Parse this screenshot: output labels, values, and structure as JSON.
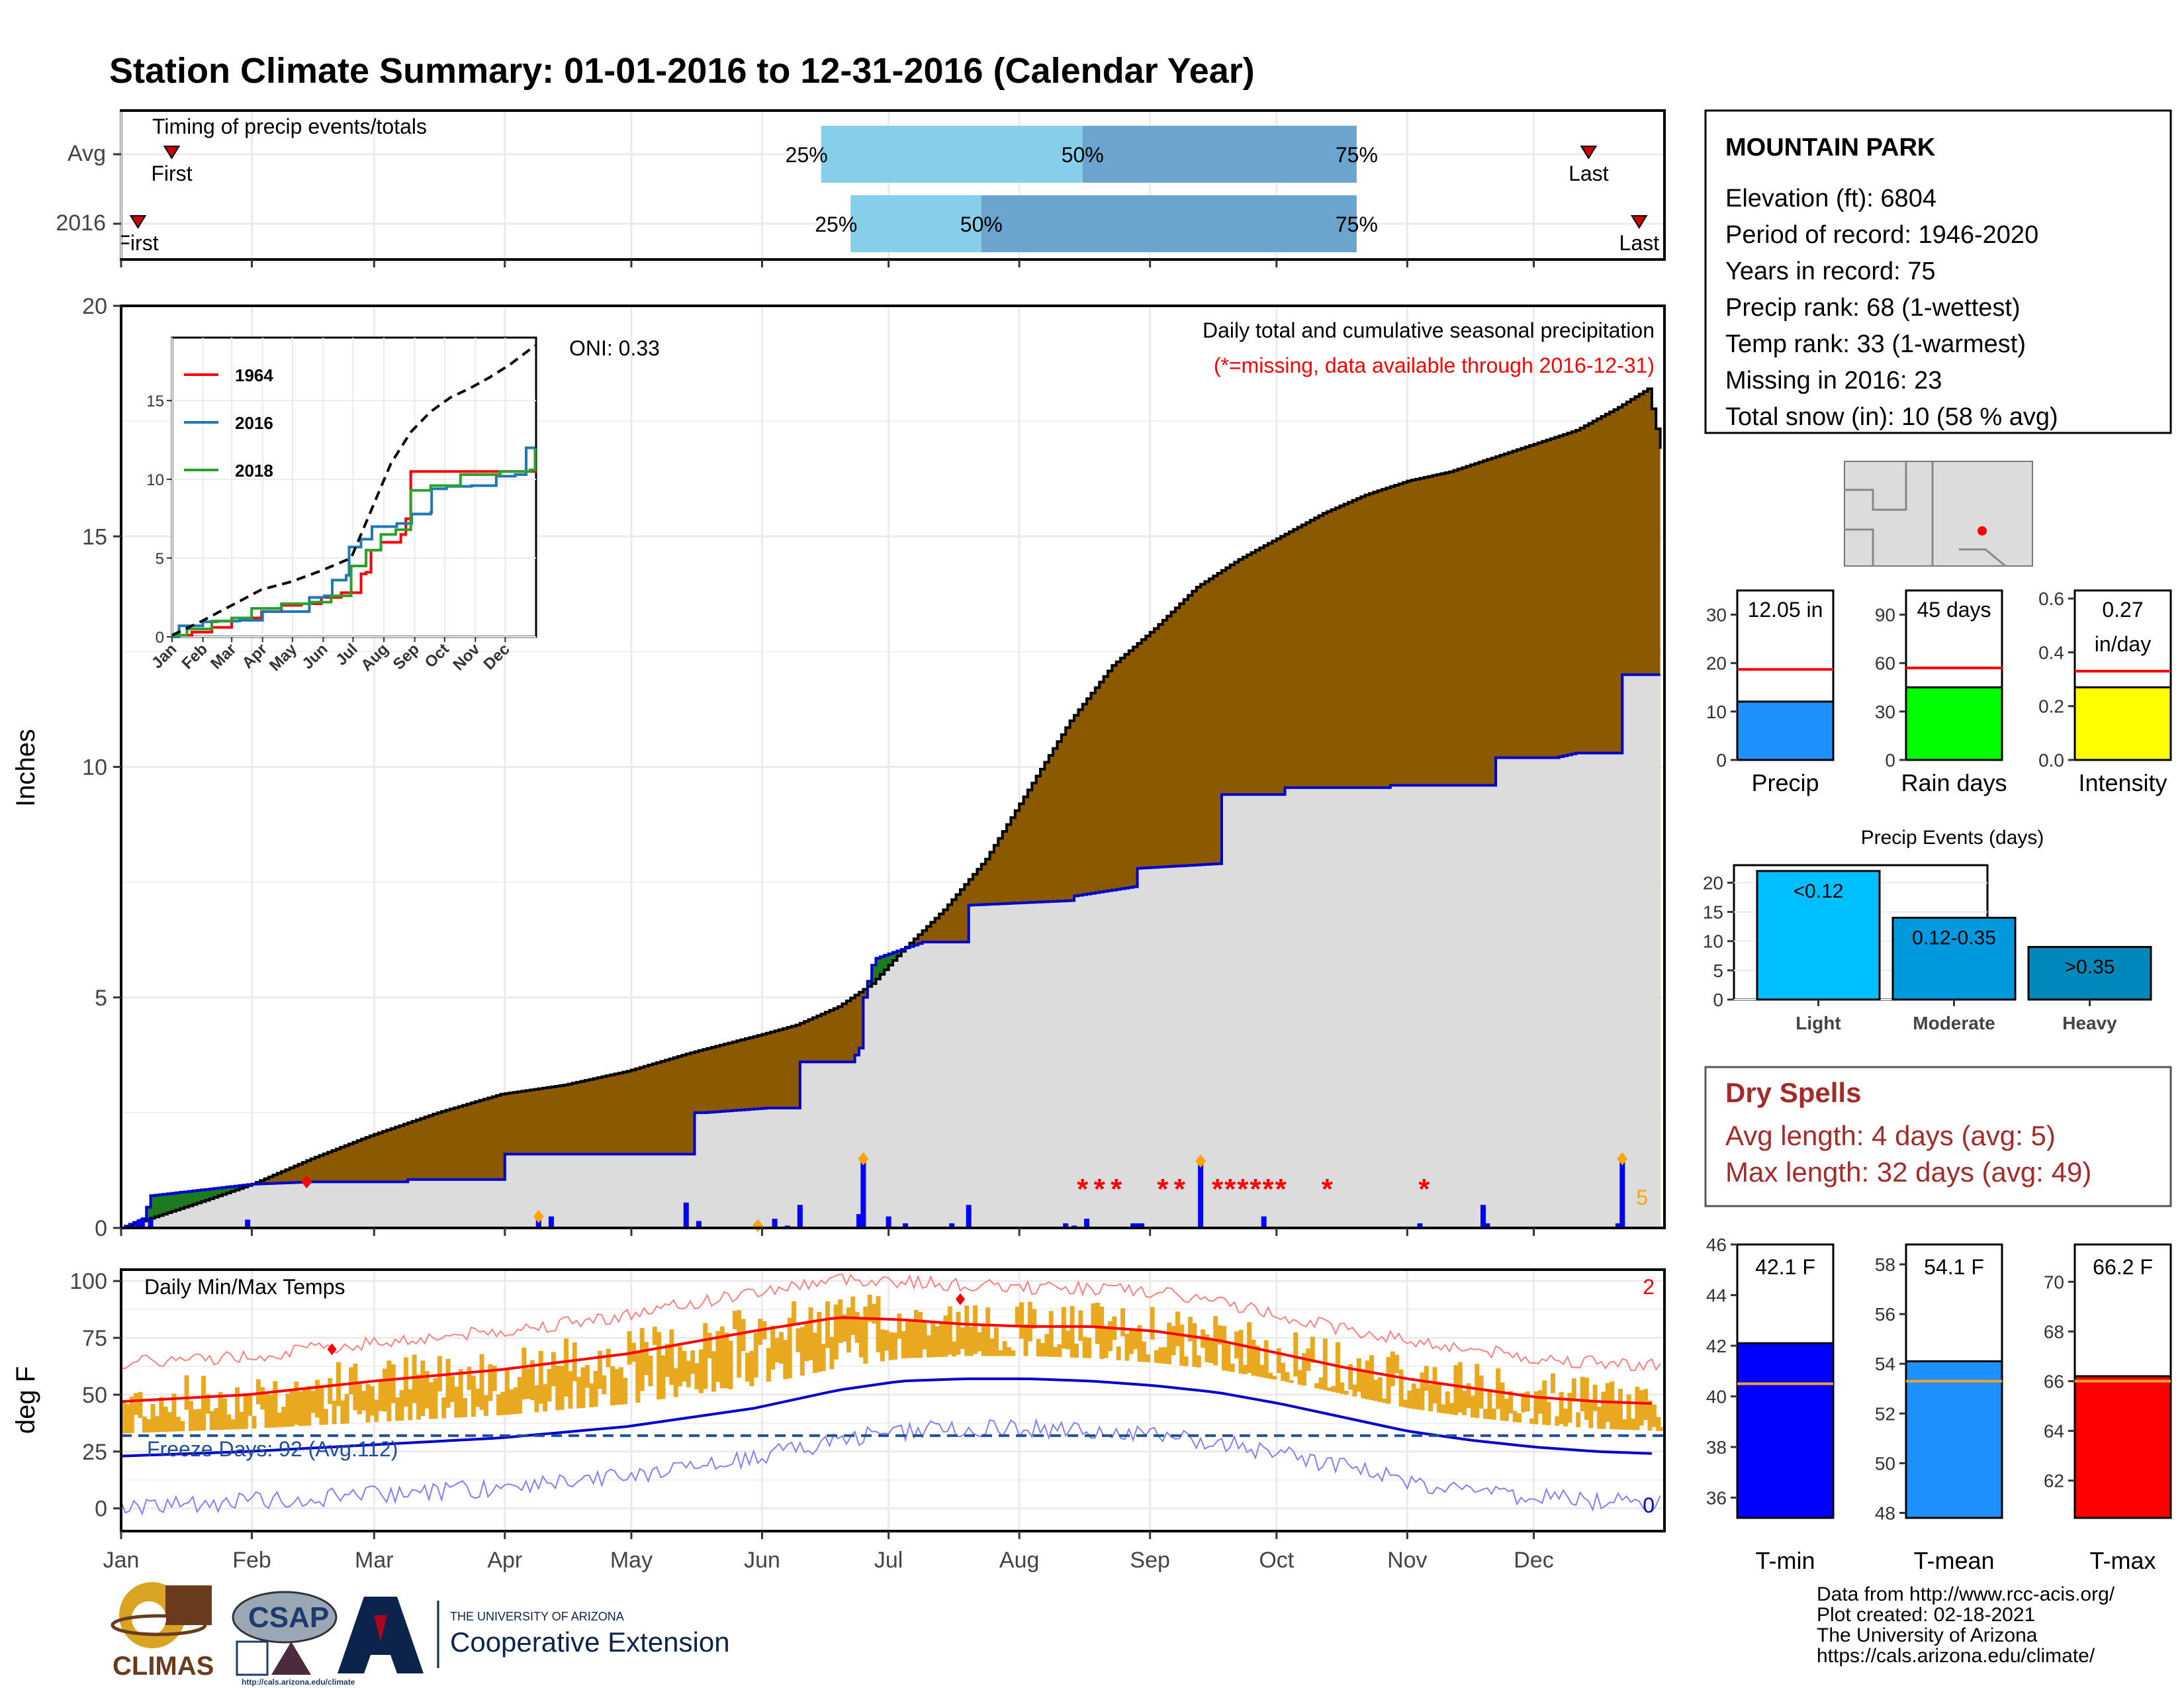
{
  "title": "Station Climate Summary: 01-01-2016 to 12-31-2016 (Calendar Year)",
  "months": [
    "Jan",
    "Feb",
    "Mar",
    "Apr",
    "May",
    "Jun",
    "Jul",
    "Aug",
    "Sep",
    "Oct",
    "Nov",
    "Dec"
  ],
  "timing": {
    "label": "Timing of precip events/totals",
    "rows": [
      {
        "name": "Avg",
        "first_label": "First",
        "first_day": 12,
        "last_label": "Last",
        "last_day": 348,
        "q25_label": "25%",
        "q50_label": "50%",
        "q75_label": "75%",
        "q25_day": 166,
        "q50_day": 228,
        "q75_day": 293
      },
      {
        "name": "2016",
        "first_label": "First",
        "first_day": 4,
        "last_label": "Last",
        "last_day": 360,
        "q25_label": "25%",
        "q50_label": "50%",
        "q75_label": "75%",
        "q25_day": 173,
        "q50_day": 204,
        "q75_day": 293
      }
    ]
  },
  "station": {
    "name": "MOUNTAIN PARK",
    "lines": [
      "Elevation (ft): 6804",
      "Period of record: 1946-2020",
      "Years in record: 75",
      "Precip rank: 68 (1-wettest)",
      "Temp rank: 33 (1-warmest)",
      "Missing in 2016: 23",
      "Total snow (in): 10 (58 % avg)"
    ]
  },
  "precip_panel": {
    "ylabel": "Inches",
    "yticks": [
      "0",
      "5",
      "10",
      "15",
      "20"
    ],
    "oni": "ONI: 0.33",
    "note1": "Daily total and cumulative seasonal precipitation",
    "note2": "(*=missing, data available through 2016-12-31)",
    "count_label": "5"
  },
  "chart_data": [
    {
      "type": "area",
      "name": "cumulative precipitation",
      "x_unit": "day of year",
      "ylim": [
        0,
        20
      ],
      "series": [
        {
          "name": "Avg cumulative",
          "x": [
            0,
            10,
            20,
            31,
            45,
            59,
            75,
            90,
            105,
            120,
            135,
            152,
            160,
            170,
            178,
            185,
            195,
            205,
            215,
            225,
            235,
            245,
            255,
            265,
            275,
            285,
            295,
            305,
            315,
            325,
            335,
            345,
            355,
            362,
            365
          ],
          "values": [
            0,
            0.3,
            0.6,
            0.95,
            1.5,
            2.0,
            2.5,
            2.9,
            3.1,
            3.4,
            3.8,
            4.2,
            4.4,
            4.8,
            5.3,
            6.0,
            6.9,
            8.0,
            9.5,
            11.0,
            12.2,
            13.0,
            13.9,
            14.5,
            15.0,
            15.5,
            15.9,
            16.2,
            16.4,
            16.7,
            17.0,
            17.3,
            17.8,
            18.2,
            16.9
          ]
        },
        {
          "name": "2016 cumulative",
          "x": [
            0,
            5,
            7,
            31,
            45,
            46,
            60,
            67,
            68,
            90,
            91,
            135,
            136,
            138,
            153,
            160,
            161,
            173,
            175,
            176,
            178,
            179,
            190,
            200,
            201,
            225,
            226,
            240,
            241,
            260,
            261,
            270,
            275,
            276,
            300,
            301,
            325,
            326,
            340,
            345,
            355,
            356,
            365
          ],
          "values": [
            0.0,
            0.2,
            0.7,
            0.95,
            1.0,
            1.0,
            1.0,
            1.0,
            1.05,
            1.05,
            1.6,
            1.6,
            2.5,
            2.5,
            2.6,
            2.6,
            3.6,
            3.6,
            3.9,
            5.0,
            5.7,
            5.85,
            6.2,
            6.2,
            7.0,
            7.1,
            7.2,
            7.4,
            7.8,
            7.9,
            9.4,
            9.4,
            9.4,
            9.55,
            9.55,
            9.6,
            9.6,
            10.2,
            10.2,
            10.3,
            10.3,
            12.0,
            12.0
          ]
        }
      ]
    },
    {
      "type": "bar",
      "name": "daily precipitation",
      "x": [
        4,
        5,
        7,
        30,
        99,
        102,
        134,
        137,
        151,
        155,
        158,
        161,
        175,
        176,
        182,
        186,
        197,
        201,
        224,
        226,
        229,
        240,
        242,
        241,
        256,
        271,
        308,
        323,
        324,
        355,
        356
      ],
      "values": [
        0.15,
        0.2,
        0.2,
        0.18,
        0.2,
        0.25,
        0.55,
        0.15,
        0.05,
        0.2,
        0.05,
        0.5,
        0.3,
        1.5,
        0.25,
        0.1,
        0.1,
        0.5,
        0.1,
        0.05,
        0.2,
        0.1,
        0.1,
        0.1,
        1.45,
        0.25,
        0.1,
        0.5,
        0.1,
        0.1,
        1.5
      ]
    },
    {
      "type": "line",
      "name": "temperature",
      "ylim": [
        -10,
        105
      ],
      "yticks": [
        "0",
        "25",
        "50",
        "75",
        "100"
      ],
      "ylabel": "deg F",
      "label": "Daily Min/Max Temps",
      "freeze_label": "Freeze Days: 92 (Avg:112)",
      "freeze_line": 32,
      "top_count": "2",
      "bottom_count": "0",
      "normal_x": [
        0,
        30,
        60,
        90,
        120,
        150,
        170,
        185,
        200,
        215,
        230,
        245,
        260,
        275,
        290,
        305,
        320,
        335,
        350,
        365
      ],
      "normal_max": [
        47,
        50,
        56,
        61,
        68,
        78,
        84,
        83,
        81,
        80,
        80,
        78,
        74,
        68,
        62,
        57,
        53,
        49,
        47,
        46
      ],
      "normal_min": [
        23,
        25,
        28,
        31,
        36,
        44,
        52,
        56,
        57,
        57,
        56,
        54,
        51,
        46,
        40,
        34,
        30,
        27,
        25,
        24
      ]
    },
    {
      "type": "line",
      "name": "inset cumulative precipitation",
      "ylim": [
        0,
        18
      ],
      "yticks": [
        "0",
        "5",
        "10",
        "15"
      ],
      "series": [
        {
          "name": "1964",
          "x": [
            0,
            20,
            40,
            60,
            90,
            110,
            130,
            150,
            170,
            190,
            195,
            200,
            210,
            230,
            235,
            240,
            260,
            265,
            270,
            300,
            350,
            365
          ],
          "values": [
            0.1,
            0.3,
            0.6,
            1.2,
            1.6,
            2.0,
            2.1,
            2.5,
            2.8,
            4.0,
            4.1,
            5.5,
            6.0,
            6.5,
            7.5,
            10.5,
            10.5,
            10.5,
            10.5,
            10.5,
            10.5,
            11.6
          ]
        },
        {
          "name": "2016",
          "x": [
            0,
            7,
            31,
            45,
            68,
            91,
            135,
            138,
            153,
            161,
            175,
            178,
            190,
            201,
            226,
            241,
            260,
            261,
            276,
            301,
            326,
            345,
            356,
            365
          ],
          "values": [
            0.0,
            0.7,
            0.95,
            1.0,
            1.05,
            1.6,
            1.6,
            2.5,
            2.6,
            3.6,
            3.9,
            5.7,
            6.2,
            7.0,
            7.2,
            7.8,
            7.9,
            9.4,
            9.55,
            9.6,
            10.2,
            10.3,
            12.0,
            12.0
          ]
        },
        {
          "name": "2018",
          "x": [
            0,
            15,
            40,
            60,
            80,
            110,
            140,
            160,
            180,
            195,
            210,
            225,
            240,
            260,
            290,
            330,
            360,
            365
          ],
          "values": [
            0.1,
            0.5,
            1.0,
            1.2,
            1.8,
            2.1,
            2.2,
            2.6,
            4.5,
            5.5,
            6.5,
            6.8,
            9.3,
            9.6,
            10.3,
            10.5,
            10.6,
            12.0
          ]
        },
        {
          "name": "average",
          "x": [
            0,
            30,
            60,
            90,
            120,
            150,
            180,
            200,
            220,
            240,
            260,
            280,
            300,
            320,
            340,
            365
          ],
          "values": [
            0.1,
            1.0,
            2.0,
            3.0,
            3.5,
            4.2,
            5.0,
            8.0,
            11.0,
            13.0,
            14.3,
            15.2,
            15.8,
            16.5,
            17.3,
            18.5
          ]
        }
      ]
    },
    {
      "type": "bar",
      "name": "precip summary",
      "groups": [
        {
          "label": "Precip",
          "value": 12.05,
          "value_label": "12.05 in",
          "avg": 18.7,
          "ymax": 35,
          "yticks": [
            "0",
            "10",
            "20",
            "30"
          ],
          "color": "#1e90ff"
        },
        {
          "label": "Rain days",
          "value": 45,
          "value_label": "45 days",
          "avg": 57,
          "ymax": 105,
          "yticks": [
            "0",
            "30",
            "60",
            "90"
          ],
          "color": "#00ff00"
        },
        {
          "label": "Intensity",
          "value": 0.27,
          "value_label": "0.27",
          "value_label2": "in/day",
          "avg": 0.33,
          "ymax": 0.63,
          "yticks": [
            "0.0",
            "0.2",
            "0.4",
            "0.6"
          ],
          "color": "#ffff00"
        }
      ]
    },
    {
      "type": "bar",
      "name": "precip events",
      "title": "Precip Events (days)",
      "categories": [
        "Light",
        "Moderate",
        "Heavy"
      ],
      "bar_labels": [
        "<0.12",
        "0.12-0.35",
        ">0.35"
      ],
      "values": [
        22,
        14,
        9
      ],
      "ylim": [
        0,
        23
      ],
      "yticks": [
        "0",
        "5",
        "10",
        "15",
        "20"
      ],
      "colors": [
        "#00bfff",
        "#0099dd",
        "#0088bb"
      ]
    },
    {
      "type": "bar",
      "name": "temperature summary",
      "groups": [
        {
          "label": "T-min",
          "value": 42.1,
          "value_label": "42.1 F",
          "avg": 40.5,
          "ylim": [
            35.2,
            46
          ],
          "yticks": [
            "36",
            "38",
            "40",
            "42",
            "44",
            "46"
          ],
          "color": "#0000ff"
        },
        {
          "label": "T-mean",
          "value": 54.1,
          "value_label": "54.1 F",
          "avg": 53.3,
          "ylim": [
            47.8,
            58.8
          ],
          "yticks": [
            "48",
            "50",
            "52",
            "54",
            "56",
            "58"
          ],
          "color": "#1e90ff"
        },
        {
          "label": "T-max",
          "value": 66.2,
          "value_label": "66.2 F",
          "avg": 66.0,
          "ylim": [
            60.5,
            71.5
          ],
          "yticks": [
            "62",
            "64",
            "66",
            "68",
            "70"
          ],
          "color": "#ff0000"
        }
      ]
    }
  ],
  "inset_legend": [
    "1964",
    "2016",
    "2018"
  ],
  "dry_spells": {
    "title": "Dry Spells",
    "line1": "Avg length: 4 days (avg: 5)",
    "line2": "Max length: 32 days (avg: 49)"
  },
  "footer": {
    "lines": [
      "Data from http://www.rcc-acis.org/",
      "Plot created: 02-18-2021",
      "The University of Arizona",
      "https://cals.arizona.edu/climate/"
    ],
    "ua_small": "THE UNIVERSITY OF ARIZONA",
    "ua_big": "Cooperative Extension",
    "climas": "CLIMAS",
    "csap": "CSAP",
    "csap_url": "http://cals.arizona.edu/climate"
  },
  "colors": {
    "title": "#000080",
    "avg_fill": "#8b5a00",
    "year_fill": "#dcdcdc",
    "above_fill": "#1e7a1e",
    "year_line": "#0000cc",
    "daily_bar": "#0000ff",
    "temp_bar": "#e8a820",
    "normal_max": "#ff0000",
    "normal_min": "#0000cc",
    "missing": "#ff0000",
    "dry_spell": "#a52a2a",
    "q_light": "#87ceeb",
    "q_dark": "#6ba4cc",
    "orange": "#ffa500"
  }
}
